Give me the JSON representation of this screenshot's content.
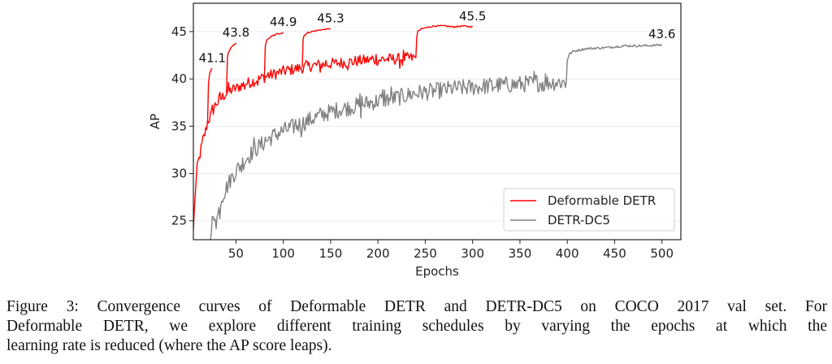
{
  "figure": {
    "caption_lines": [
      "Figure 3: Convergence curves of Deformable DETR and DETR-DC5 on COCO 2017 val set. For",
      "Deformable DETR, we explore different training schedules by varying the epochs at which the",
      "learning rate is reduced (where the AP score leaps)."
    ]
  },
  "chart_data": {
    "type": "line",
    "title": "",
    "xlabel": "Epochs",
    "ylabel": "AP",
    "xlim": [
      5,
      520
    ],
    "ylim": [
      23,
      48
    ],
    "xticks": [
      50,
      100,
      150,
      200,
      250,
      300,
      350,
      400,
      450,
      500
    ],
    "yticks": [
      25,
      30,
      35,
      40,
      45
    ],
    "grid": "horizontal",
    "legend_position": "lower-right",
    "colors": {
      "deformable": "#ff0000",
      "detr": "#808080"
    },
    "series": [
      {
        "name": "Deformable DETR",
        "color": "#ff0000",
        "segment": "main schedule",
        "x": [
          5,
          7,
          9,
          12,
          15,
          18,
          20,
          23,
          25,
          28,
          30,
          35,
          40,
          45,
          50,
          60,
          70,
          80,
          90,
          100,
          110,
          120,
          130,
          140,
          150,
          160,
          170,
          180,
          190,
          200,
          210,
          220,
          230,
          240
        ],
        "y": [
          24.0,
          28.0,
          30.5,
          32.0,
          33.5,
          34.5,
          35.5,
          36.0,
          36.5,
          37.2,
          37.5,
          38.0,
          38.5,
          38.8,
          39.0,
          39.5,
          39.8,
          40.2,
          40.5,
          40.8,
          41.0,
          41.2,
          41.4,
          41.5,
          41.6,
          41.7,
          41.8,
          41.9,
          42.0,
          42.0,
          42.1,
          42.1,
          42.2,
          42.2
        ],
        "noise": 0.6
      },
      {
        "name": "Deformable DETR",
        "color": "#ff0000",
        "segment": "lr drop at 20",
        "x": [
          20,
          21,
          22,
          24,
          25
        ],
        "y": [
          35.5,
          39.5,
          40.5,
          41.0,
          41.1
        ],
        "noise": 0.05
      },
      {
        "name": "Deformable DETR",
        "color": "#ff0000",
        "segment": "lr drop at 40",
        "x": [
          40,
          41,
          42,
          45,
          48,
          50
        ],
        "y": [
          38.5,
          42.3,
          42.8,
          43.3,
          43.6,
          43.8
        ],
        "noise": 0.08
      },
      {
        "name": "Deformable DETR",
        "color": "#ff0000",
        "segment": "lr drop at 80",
        "x": [
          80,
          81,
          82,
          86,
          90,
          95,
          100
        ],
        "y": [
          40.2,
          43.5,
          44.0,
          44.4,
          44.6,
          44.8,
          44.9
        ],
        "noise": 0.08
      },
      {
        "name": "Deformable DETR",
        "color": "#ff0000",
        "segment": "lr drop at 120",
        "x": [
          120,
          121,
          122,
          126,
          130,
          140,
          150
        ],
        "y": [
          41.2,
          44.2,
          44.6,
          44.9,
          45.0,
          45.2,
          45.3
        ],
        "noise": 0.06
      },
      {
        "name": "Deformable DETR",
        "color": "#ff0000",
        "segment": "lr drop at 240",
        "x": [
          240,
          241,
          242,
          246,
          250,
          260,
          270,
          280,
          290,
          300
        ],
        "y": [
          42.2,
          44.5,
          45.0,
          45.3,
          45.4,
          45.6,
          45.6,
          45.5,
          45.6,
          45.5
        ],
        "noise": 0.07
      },
      {
        "name": "DETR-DC5",
        "color": "#808080",
        "segment": "full schedule",
        "x": [
          23,
          25,
          28,
          30,
          35,
          40,
          45,
          50,
          60,
          70,
          80,
          90,
          100,
          120,
          140,
          160,
          180,
          200,
          220,
          240,
          260,
          280,
          300,
          320,
          340,
          360,
          380,
          399
        ],
        "y": [
          23.0,
          24.8,
          25.8,
          25.2,
          27.5,
          28.5,
          29.5,
          30.3,
          31.5,
          32.5,
          33.3,
          34.0,
          34.5,
          35.3,
          36.2,
          36.8,
          37.2,
          37.7,
          38.0,
          38.5,
          38.7,
          39.0,
          39.1,
          39.3,
          39.4,
          39.5,
          39.6,
          39.7
        ],
        "noise": 0.9
      },
      {
        "name": "DETR-DC5",
        "color": "#808080",
        "segment": "lr drop at 400",
        "x": [
          399,
          400,
          402,
          406,
          410,
          420,
          440,
          460,
          480,
          500
        ],
        "y": [
          39.7,
          42.0,
          42.6,
          42.9,
          43.0,
          43.2,
          43.3,
          43.5,
          43.5,
          43.6
        ],
        "noise": 0.12
      }
    ],
    "annotations": [
      {
        "text": "41.1",
        "x": 25,
        "y": 41.1
      },
      {
        "text": "43.8",
        "x": 50,
        "y": 43.8
      },
      {
        "text": "44.9",
        "x": 100,
        "y": 44.9
      },
      {
        "text": "45.3",
        "x": 150,
        "y": 45.3
      },
      {
        "text": "45.5",
        "x": 300,
        "y": 45.5
      },
      {
        "text": "43.6",
        "x": 500,
        "y": 43.6
      }
    ],
    "legend": [
      {
        "label": "Deformable DETR",
        "color": "#ff0000"
      },
      {
        "label": "DETR-DC5",
        "color": "#808080"
      }
    ]
  }
}
